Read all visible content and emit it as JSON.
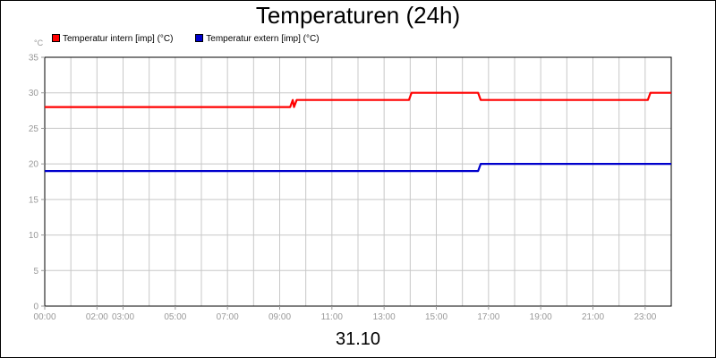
{
  "chart_data": {
    "type": "line",
    "title": "Temperaturen (24h)",
    "ylabel": "°C",
    "xlabel": "31.10",
    "ylim": [
      0,
      35
    ],
    "yticks": [
      0,
      5,
      10,
      15,
      20,
      25,
      30,
      35
    ],
    "xlim": [
      0,
      24
    ],
    "xticks": [
      {
        "value": 0,
        "label": "00:00"
      },
      {
        "value": 2,
        "label": "02:00"
      },
      {
        "value": 3,
        "label": "03:00"
      },
      {
        "value": 5,
        "label": "05:00"
      },
      {
        "value": 7,
        "label": "07:00"
      },
      {
        "value": 9,
        "label": "09:00"
      },
      {
        "value": 11,
        "label": "11:00"
      },
      {
        "value": 13,
        "label": "13:00"
      },
      {
        "value": 15,
        "label": "15:00"
      },
      {
        "value": 17,
        "label": "17:00"
      },
      {
        "value": 19,
        "label": "19:00"
      },
      {
        "value": 21,
        "label": "21:00"
      },
      {
        "value": 23,
        "label": "23:00"
      }
    ],
    "gridlines_x": [
      0,
      1,
      2,
      3,
      4,
      5,
      6,
      7,
      8,
      9,
      10,
      11,
      12,
      13,
      14,
      15,
      16,
      17,
      18,
      19,
      20,
      21,
      22,
      23,
      24
    ],
    "grid": true,
    "legend_position": "top-left",
    "series": [
      {
        "name": "Temperatur intern [imp] (°C)",
        "color": "#ff0000",
        "points": [
          [
            0,
            28
          ],
          [
            9.4,
            28
          ],
          [
            9.5,
            29
          ],
          [
            9.55,
            28
          ],
          [
            9.65,
            29
          ],
          [
            13.95,
            29
          ],
          [
            14.05,
            30
          ],
          [
            16.6,
            30
          ],
          [
            16.7,
            29
          ],
          [
            23.1,
            29
          ],
          [
            23.2,
            30
          ],
          [
            24,
            30
          ]
        ]
      },
      {
        "name": "Temperatur extern [imp] (°C)",
        "color": "#0000cc",
        "points": [
          [
            0,
            19
          ],
          [
            16.6,
            19
          ],
          [
            16.7,
            20
          ],
          [
            24,
            20
          ]
        ]
      }
    ]
  }
}
